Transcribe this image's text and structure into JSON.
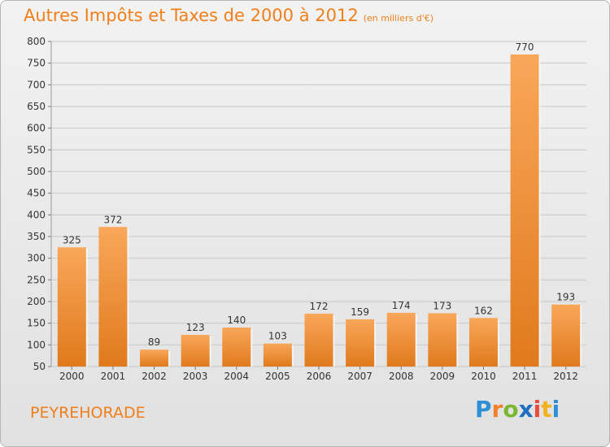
{
  "header": {
    "title": "Autres Impôts et Taxes de 2000 à 2012",
    "unit": "(en milliers d'€)"
  },
  "footer": {
    "commune": "PEYREHORADE",
    "logo_text": "Proxiti"
  },
  "colors": {
    "bar_light": "#f9a75a",
    "bar_dark": "#e07a1c",
    "title": "#f07f1a"
  },
  "chart_data": {
    "type": "bar",
    "title": "Autres Impôts et Taxes de 2000 à 2012",
    "subtitle": "(en milliers d'€)",
    "categories": [
      "2000",
      "2001",
      "2002",
      "2003",
      "2004",
      "2005",
      "2006",
      "2007",
      "2008",
      "2009",
      "2010",
      "2011",
      "2012"
    ],
    "values": [
      325,
      372,
      89,
      123,
      140,
      103,
      172,
      159,
      174,
      173,
      162,
      770,
      193
    ],
    "ylim": [
      50,
      800
    ],
    "yticks": [
      50,
      100,
      150,
      200,
      250,
      300,
      350,
      400,
      450,
      500,
      550,
      600,
      650,
      700,
      750,
      800
    ],
    "grid": true,
    "legend": "none"
  }
}
